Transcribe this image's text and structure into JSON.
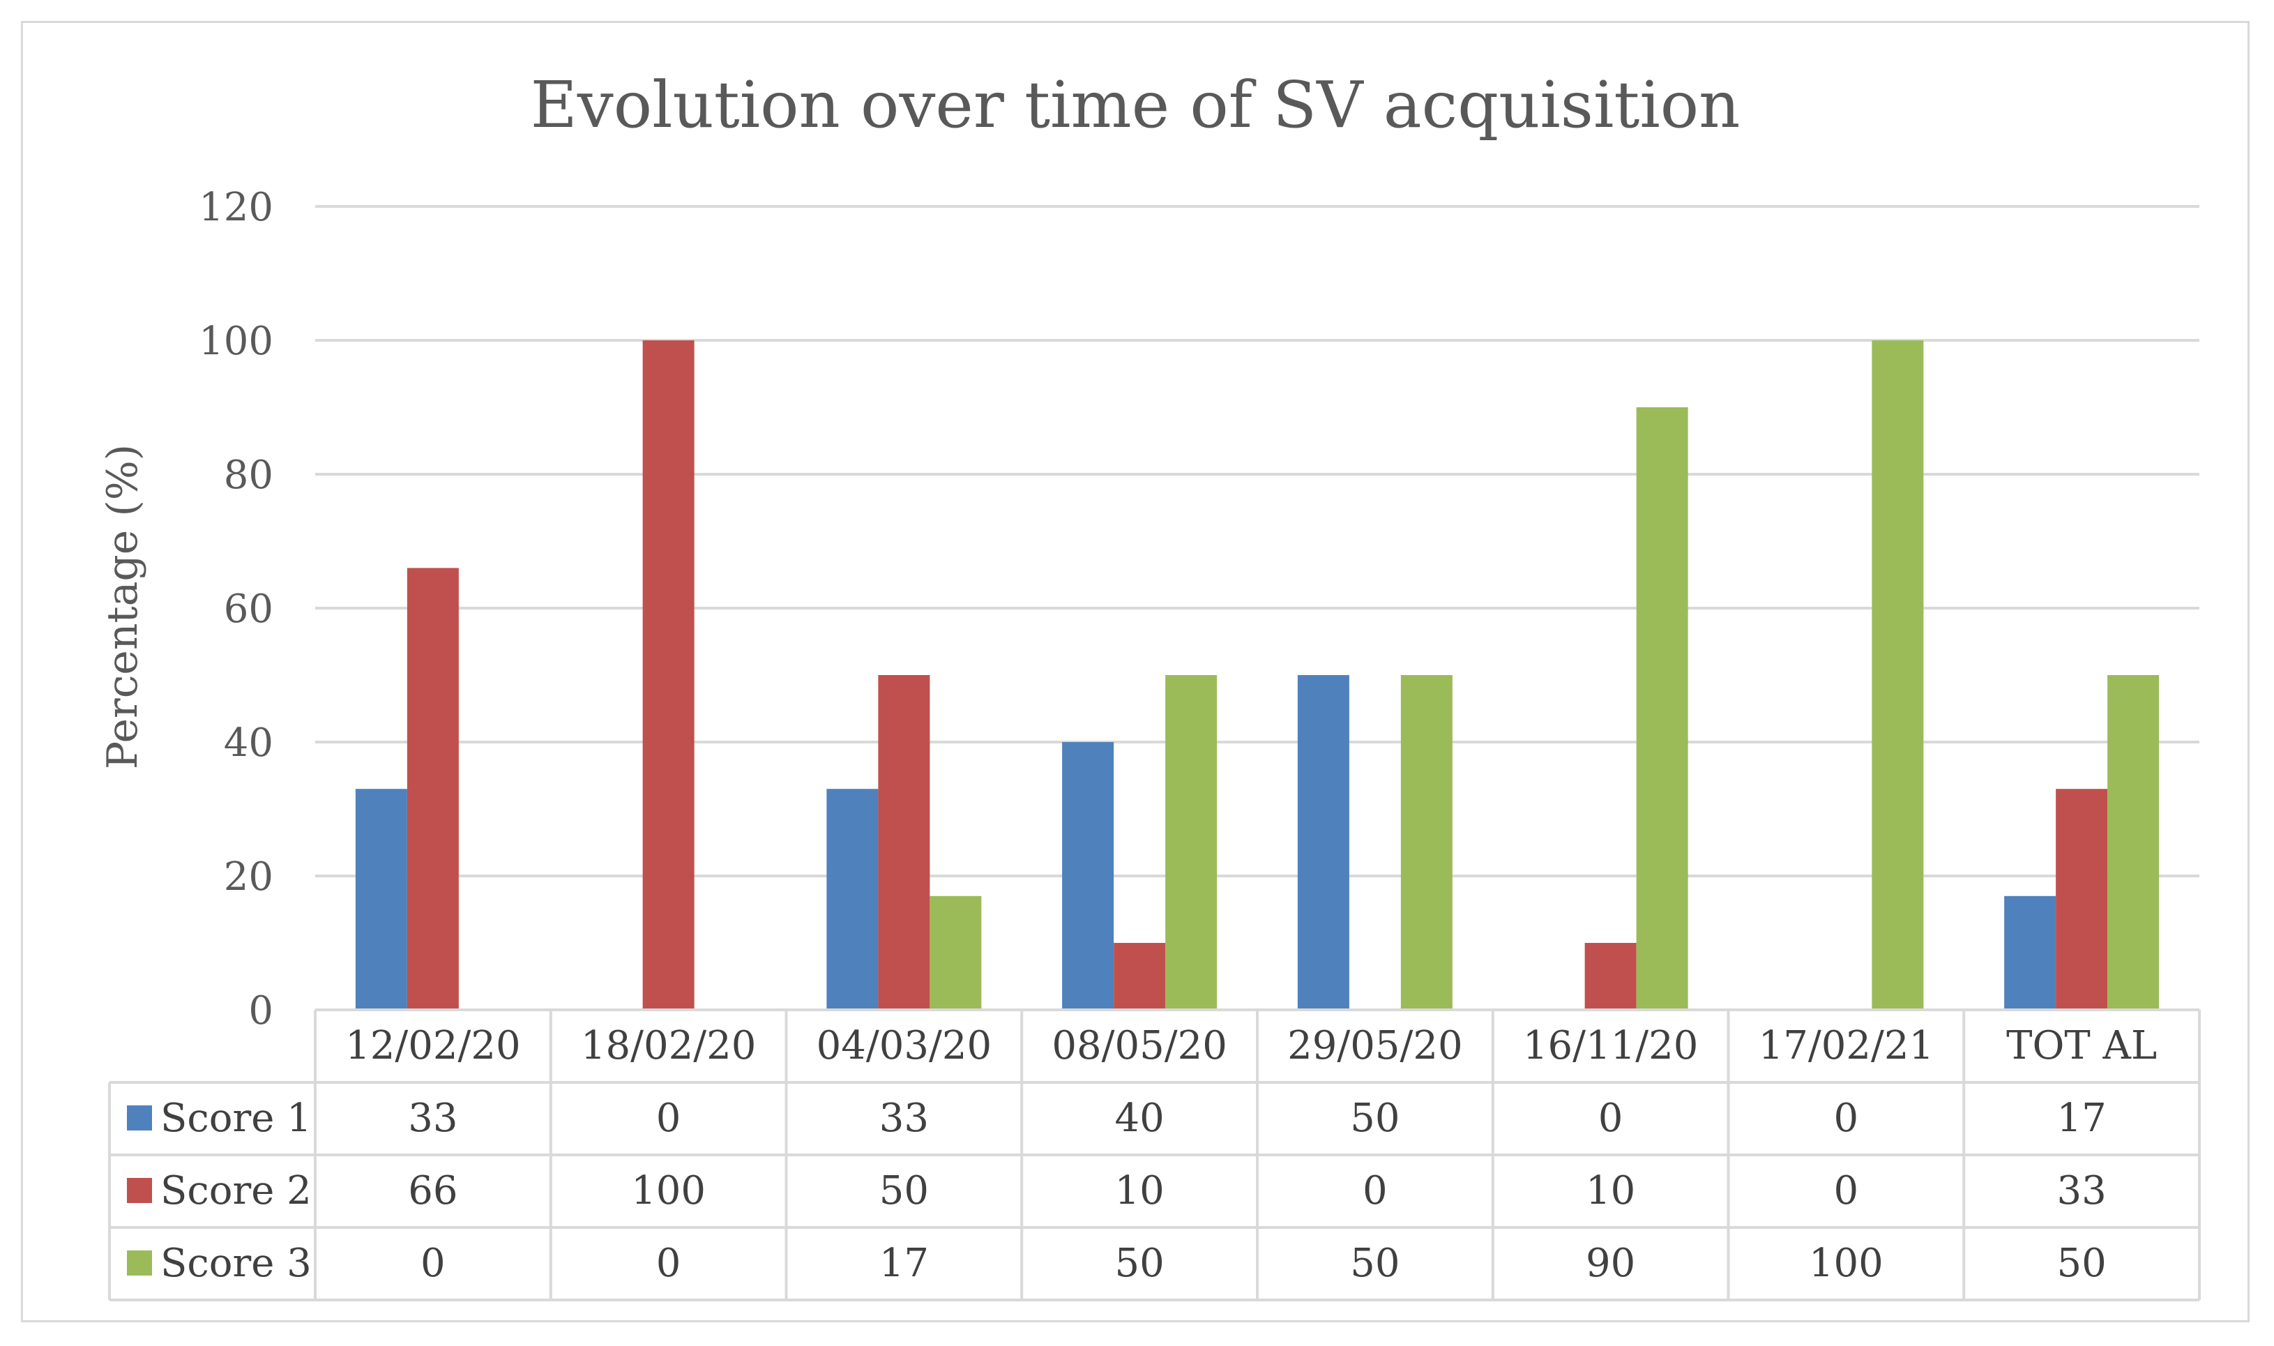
{
  "chart_data": {
    "type": "bar",
    "title": "Evolution over time of SV acquisition",
    "xlabel": "",
    "ylabel": "Percentage (%)",
    "ylim": [
      0,
      120
    ],
    "yticks": [
      0,
      20,
      40,
      60,
      80,
      100,
      120
    ],
    "grid": true,
    "legend": "data-table-left",
    "categories": [
      "12/02/20",
      "18/02/20",
      "04/03/20",
      "08/05/20",
      "29/05/20",
      "16/11/20",
      "17/02/21",
      "TOT AL"
    ],
    "series": [
      {
        "name": "Score 1",
        "color": "#4f81bd",
        "values": [
          33,
          0,
          33,
          40,
          50,
          0,
          0,
          17
        ]
      },
      {
        "name": "Score 2",
        "color": "#c0504d",
        "values": [
          66,
          100,
          50,
          10,
          0,
          10,
          0,
          33
        ]
      },
      {
        "name": "Score 3",
        "color": "#9bbb59",
        "values": [
          0,
          0,
          17,
          50,
          50,
          90,
          100,
          50
        ]
      }
    ]
  }
}
